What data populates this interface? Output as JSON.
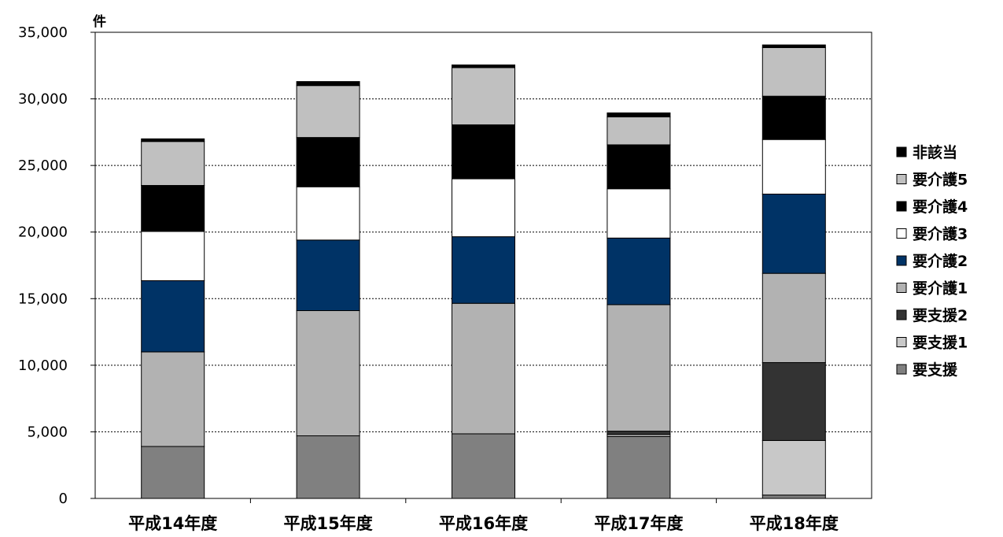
{
  "chart_data": {
    "type": "bar",
    "stacked": true,
    "unit_label": "件",
    "ylim": [
      0,
      35000
    ],
    "yticks": [
      0,
      5000,
      10000,
      15000,
      20000,
      25000,
      30000,
      35000
    ],
    "ytick_labels": [
      "0",
      "5,000",
      "10,000",
      "15,000",
      "20,000",
      "25,000",
      "30,000",
      "35,000"
    ],
    "grid": true,
    "legend_position": "right",
    "categories": [
      "平成14年度",
      "平成15年度",
      "平成16年度",
      "平成17年度",
      "平成18年度"
    ],
    "series": [
      {
        "name": "要支援",
        "color": "#808080",
        "values": [
          3900,
          4700,
          4850,
          4650,
          250
        ]
      },
      {
        "name": "要支援1",
        "color": "#c8c8c8",
        "values": [
          0,
          0,
          0,
          150,
          4100
        ]
      },
      {
        "name": "要支援2",
        "color": "#333333",
        "values": [
          0,
          0,
          0,
          250,
          5850
        ]
      },
      {
        "name": "要介護1",
        "color": "#b2b2b2",
        "values": [
          7100,
          9400,
          9800,
          9500,
          6700
        ]
      },
      {
        "name": "要介護2",
        "color": "#003366",
        "values": [
          5350,
          5300,
          5000,
          5000,
          5950
        ]
      },
      {
        "name": "要介護3",
        "color": "#ffffff",
        "values": [
          3700,
          4000,
          4350,
          3700,
          4100
        ]
      },
      {
        "name": "要介護4",
        "color": "#000000",
        "values": [
          3450,
          3700,
          4050,
          3300,
          3250
        ]
      },
      {
        "name": "要介護5",
        "color": "#c0c0c0",
        "values": [
          3300,
          3900,
          4300,
          2100,
          3650
        ]
      },
      {
        "name": "非該当",
        "color": "#000000",
        "values": [
          200,
          300,
          200,
          300,
          200
        ]
      }
    ]
  }
}
